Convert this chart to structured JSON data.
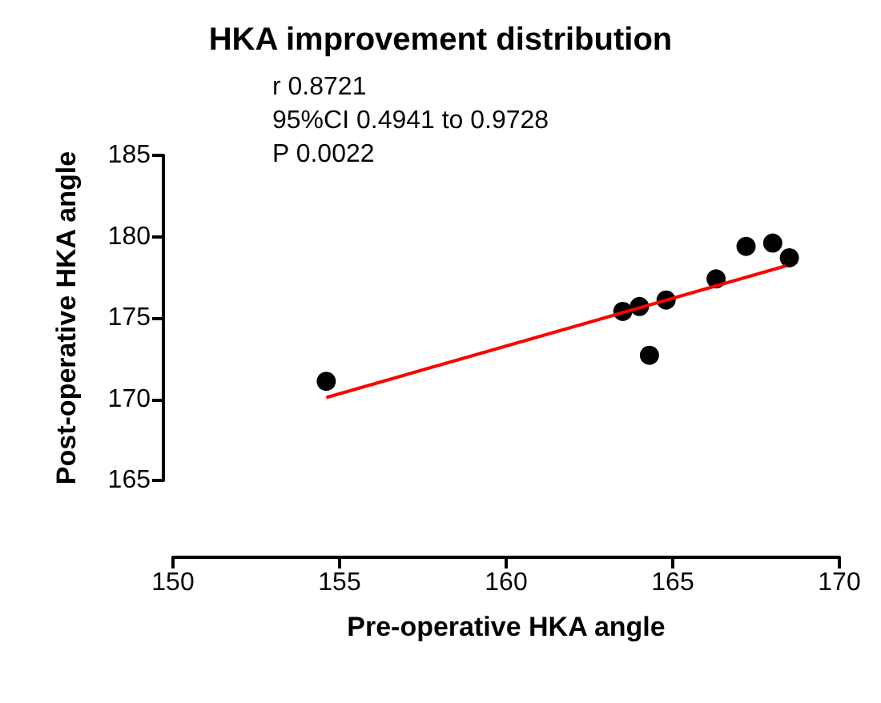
{
  "chart_data": {
    "type": "scatter",
    "title": "HKA improvement distribution",
    "xlabel": "Pre-operative HKA angle",
    "ylabel": "Post-operative HKA angle",
    "x": [
      154.6,
      163.5,
      164.0,
      164.3,
      164.8,
      166.3,
      167.2,
      168.0,
      168.5
    ],
    "series": [
      {
        "color": "#000000",
        "marker": "circle",
        "values": [
          171.1,
          175.4,
          175.7,
          172.7,
          176.1,
          177.4,
          179.4,
          179.6,
          178.7
        ]
      },
      {
        "type": "line",
        "marker": "none",
        "color": "#ff0000",
        "x": [
          154.6,
          168.4
        ],
        "values": [
          170.1,
          178.2
        ]
      }
    ],
    "xlim": [
      150,
      170
    ],
    "xticks": [
      150,
      155,
      160,
      165,
      170
    ],
    "ylim": [
      165,
      185
    ],
    "yticks": [
      165,
      170,
      175,
      180,
      185
    ],
    "annotations": [
      "r 0.8721",
      "95%CI 0.4941 to 0.9728",
      "P 0.0022"
    ],
    "grid": false
  }
}
